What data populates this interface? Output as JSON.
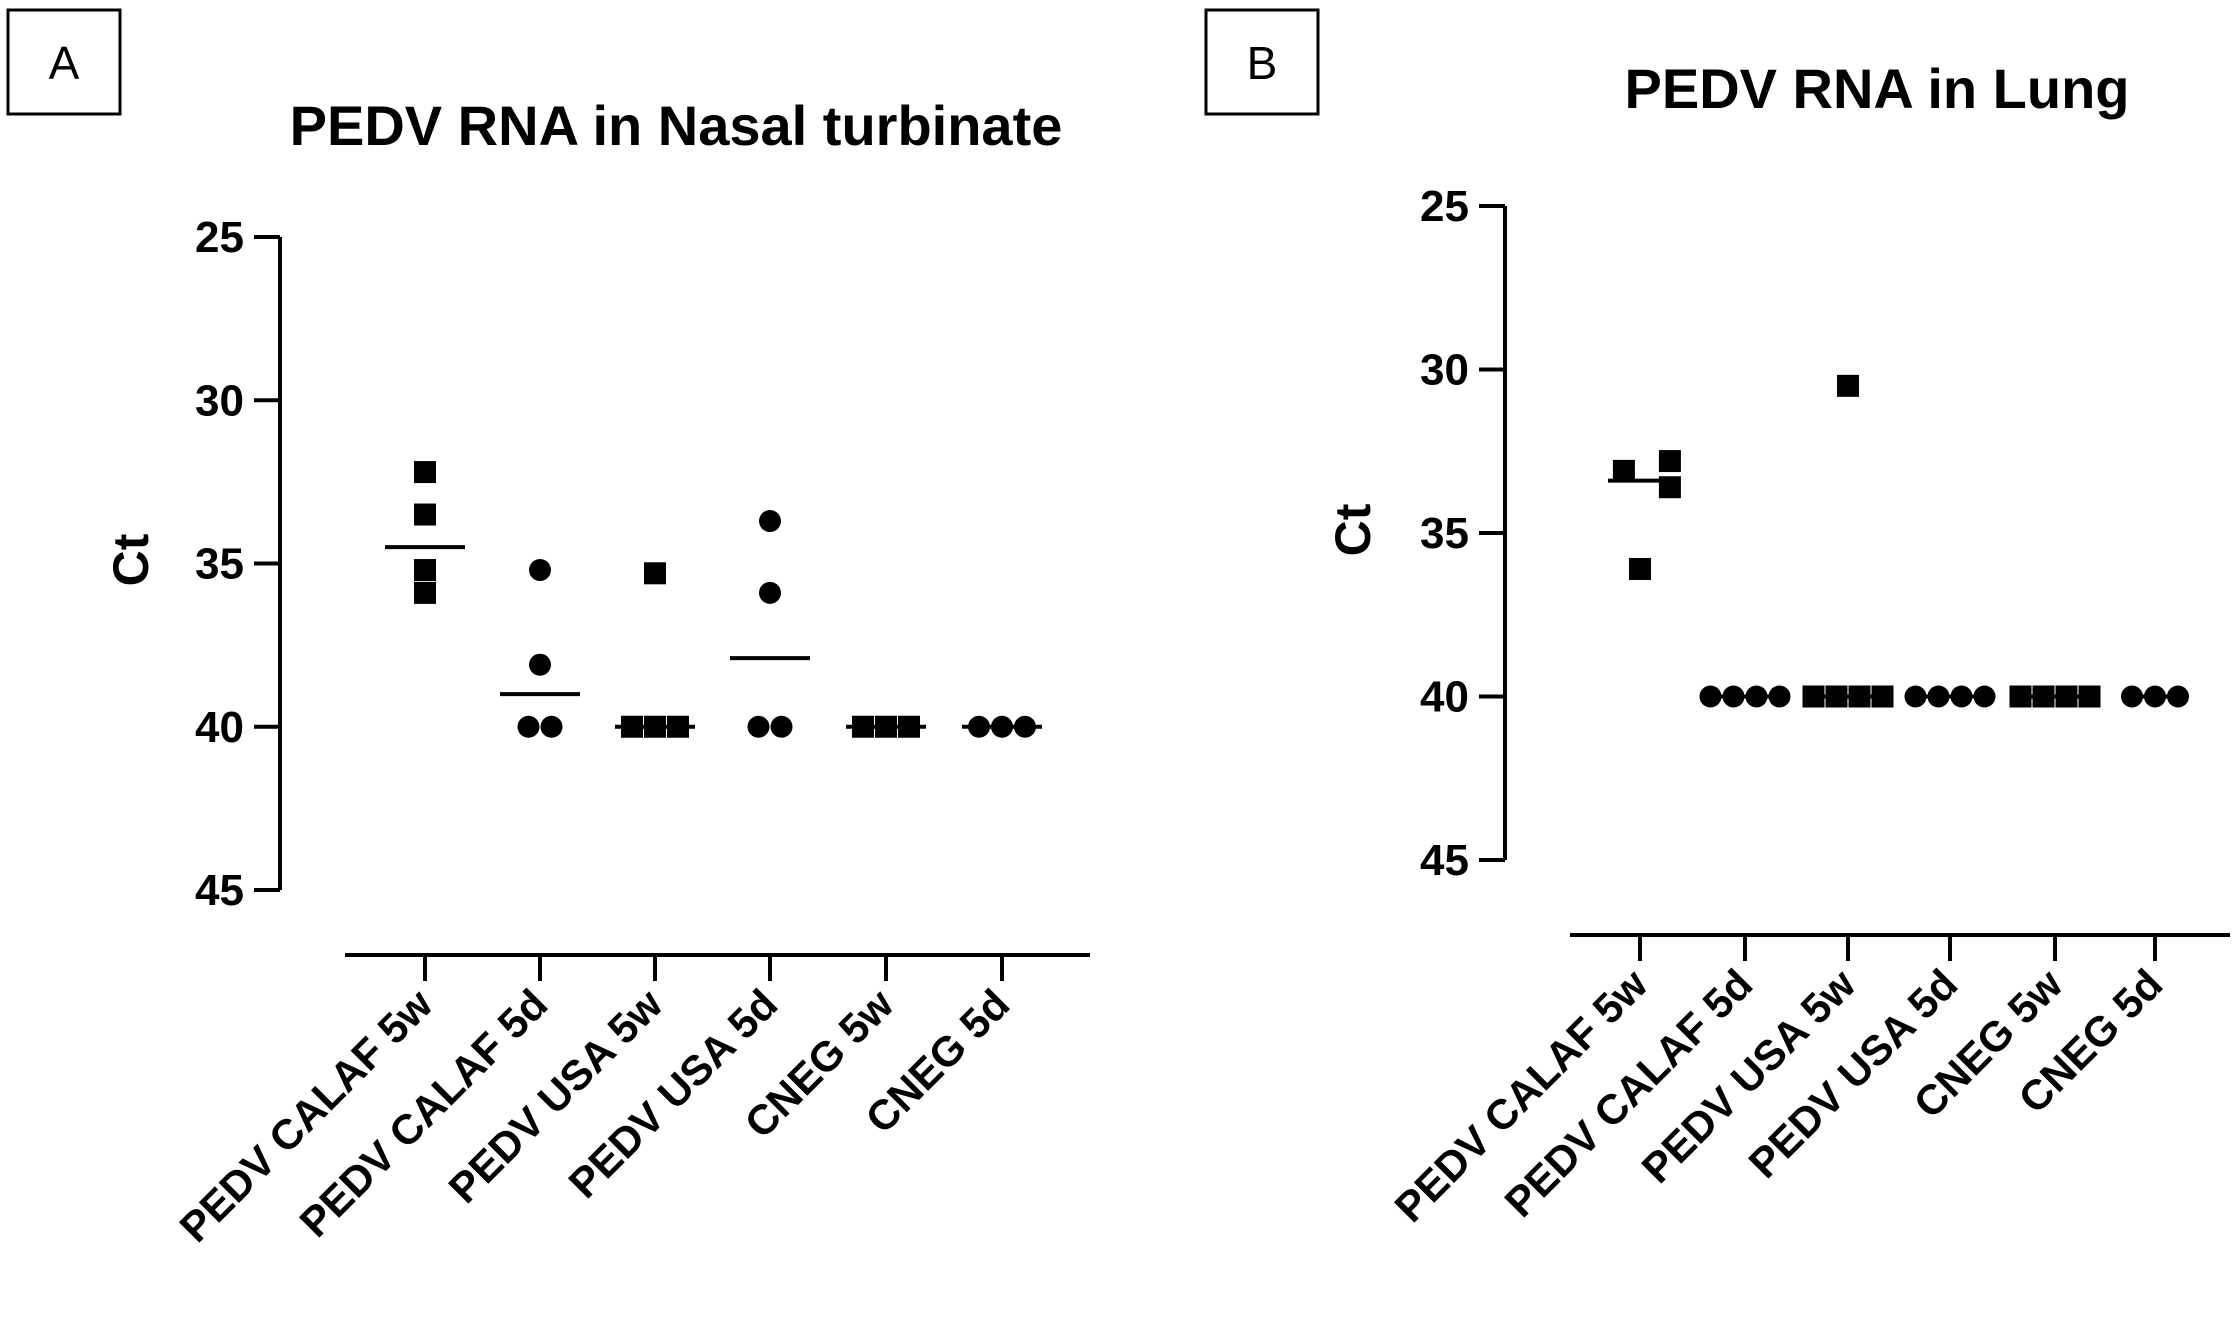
{
  "chart_data": [
    {
      "type": "scatter",
      "panel_label": "A",
      "title": "PEDV RNA in Nasal turbinate",
      "ylabel": "Ct",
      "xlabel": "",
      "ylim": [
        25,
        45
      ],
      "y_inverted": true,
      "yticks": [
        25,
        30,
        35,
        40,
        45
      ],
      "categories": [
        "PEDV CALAF 5w",
        "PEDV CALAF 5d",
        "PEDV USA 5w",
        "PEDV USA 5d",
        "CNEG 5w",
        "CNEG 5d"
      ],
      "markers": [
        "square",
        "circle",
        "square",
        "circle",
        "square",
        "circle"
      ],
      "series": [
        {
          "name": "PEDV CALAF 5w",
          "values": [
            32.2,
            33.5,
            35.2,
            35.9
          ],
          "mean": 34.5
        },
        {
          "name": "PEDV CALAF 5d",
          "values": [
            35.2,
            38.1,
            40.0,
            40.0
          ],
          "mean": 39.0
        },
        {
          "name": "PEDV USA 5w",
          "values": [
            35.3,
            40.0,
            40.0,
            40.0
          ],
          "mean": 40.0
        },
        {
          "name": "PEDV USA 5d",
          "values": [
            33.7,
            35.9,
            40.0,
            40.0
          ],
          "mean": 37.9
        },
        {
          "name": "CNEG 5w",
          "values": [
            40.0,
            40.0,
            40.0
          ],
          "mean": 40.0
        },
        {
          "name": "CNEG 5d",
          "values": [
            40.0,
            40.0,
            40.0
          ],
          "mean": 40.0
        }
      ]
    },
    {
      "type": "scatter",
      "panel_label": "B",
      "title": "PEDV RNA in Lung",
      "ylabel": "Ct",
      "xlabel": "",
      "ylim": [
        25,
        45
      ],
      "y_inverted": true,
      "yticks": [
        25,
        30,
        35,
        40,
        45
      ],
      "categories": [
        "PEDV CALAF 5w",
        "PEDV CALAF 5d",
        "PEDV USA 5w",
        "PEDV USA 5d",
        "CNEG 5w",
        "CNEG 5d"
      ],
      "markers": [
        "square",
        "circle",
        "square",
        "circle",
        "square",
        "circle"
      ],
      "series": [
        {
          "name": "PEDV CALAF 5w",
          "values": [
            33.1,
            32.8,
            33.6,
            36.1
          ],
          "mean": 33.4
        },
        {
          "name": "PEDV CALAF 5d",
          "values": [
            40.0,
            40.0,
            40.0,
            40.0
          ],
          "mean": 40.0
        },
        {
          "name": "PEDV USA 5w",
          "values": [
            30.5,
            40.0,
            40.0,
            40.0,
            40.0
          ],
          "mean": 40.0
        },
        {
          "name": "PEDV USA 5d",
          "values": [
            40.0,
            40.0,
            40.0,
            40.0
          ],
          "mean": 40.0
        },
        {
          "name": "CNEG 5w",
          "values": [
            40.0,
            40.0,
            40.0,
            40.0
          ],
          "mean": 40.0
        },
        {
          "name": "CNEG 5d",
          "values": [
            40.0,
            40.0,
            40.0
          ],
          "mean": 40.0
        }
      ]
    }
  ]
}
